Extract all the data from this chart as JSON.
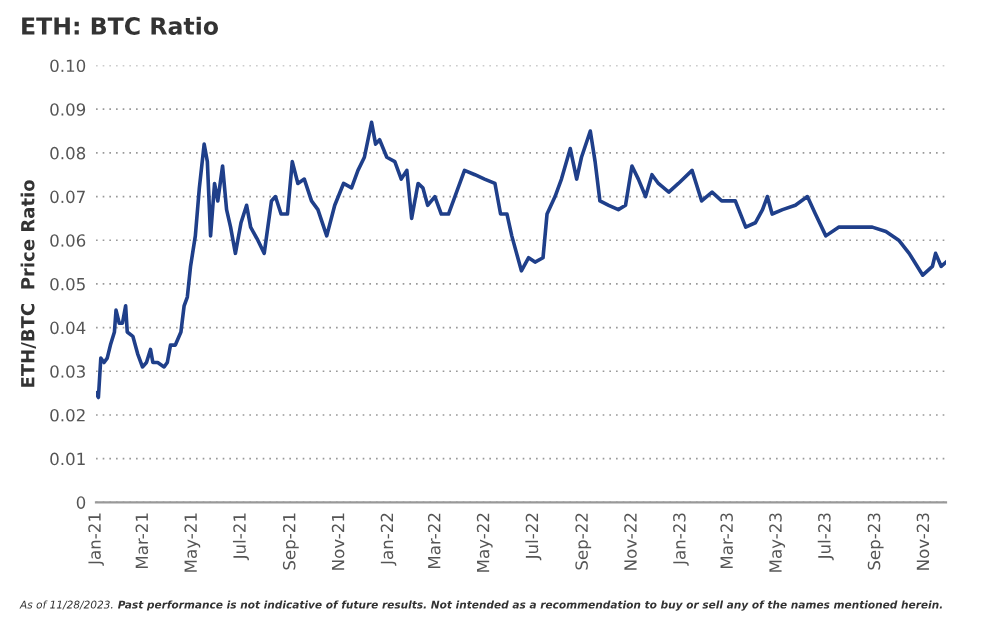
{
  "chart_data": {
    "type": "line",
    "title": "ETH: BTC Ratio",
    "ylabel": "ETH/BTC  Price Ratio",
    "annotations": [
      "As of 11/28/2023.",
      "Past performance is not indicative of future results. Not intended as a recommendation to buy or sell any of the names mentioned herein."
    ],
    "xlim": [
      "2021-01-01",
      "2023-11-28"
    ],
    "xticks": [
      {
        "value": "2021-01-01",
        "label": "Jan-21"
      },
      {
        "value": "2021-03-01",
        "label": "Mar-21"
      },
      {
        "value": "2021-05-01",
        "label": "May-21"
      },
      {
        "value": "2021-07-01",
        "label": "Jul-21"
      },
      {
        "value": "2021-09-01",
        "label": "Sep-21"
      },
      {
        "value": "2021-11-01",
        "label": "Nov-21"
      },
      {
        "value": "2022-01-01",
        "label": "Jan-22"
      },
      {
        "value": "2022-03-01",
        "label": "Mar-22"
      },
      {
        "value": "2022-05-01",
        "label": "May-22"
      },
      {
        "value": "2022-07-01",
        "label": "Jul-22"
      },
      {
        "value": "2022-09-01",
        "label": "Sep-22"
      },
      {
        "value": "2022-11-01",
        "label": "Nov-22"
      },
      {
        "value": "2023-01-01",
        "label": "Jan-23"
      },
      {
        "value": "2023-03-01",
        "label": "Mar-23"
      },
      {
        "value": "2023-05-01",
        "label": "May-23"
      },
      {
        "value": "2023-07-01",
        "label": "Jul-23"
      },
      {
        "value": "2023-09-01",
        "label": "Sep-23"
      },
      {
        "value": "2023-11-01",
        "label": "Nov-23"
      }
    ],
    "ylim": [
      0,
      0.1
    ],
    "yticks": [
      0,
      0.01,
      0.02,
      0.03,
      0.04,
      0.05,
      0.06,
      0.07,
      0.08,
      0.09,
      {
        "value": 0.1,
        "label": "0.10"
      }
    ],
    "grid": "y",
    "series": [
      {
        "color": "#1f3f8a",
        "x": [
          "2021-01-01",
          "2021-01-04",
          "2021-01-07",
          "2021-01-11",
          "2021-01-15",
          "2021-01-19",
          "2021-01-24",
          "2021-01-26",
          "2021-01-30",
          "2021-02-03",
          "2021-02-07",
          "2021-02-09",
          "2021-02-16",
          "2021-02-22",
          "2021-02-28",
          "2021-03-05",
          "2021-03-10",
          "2021-03-13",
          "2021-03-19",
          "2021-03-27",
          "2021-03-31",
          "2021-04-04",
          "2021-04-10",
          "2021-04-17",
          "2021-04-21",
          "2021-04-25",
          "2021-04-29",
          "2021-05-05",
          "2021-05-10",
          "2021-05-16",
          "2021-05-20",
          "2021-05-24",
          "2021-05-29",
          "2021-06-02",
          "2021-06-08",
          "2021-06-13",
          "2021-06-18",
          "2021-06-24",
          "2021-07-01",
          "2021-07-08",
          "2021-07-13",
          "2021-07-22",
          "2021-07-30",
          "2021-08-08",
          "2021-08-13",
          "2021-08-20",
          "2021-08-28",
          "2021-09-03",
          "2021-09-10",
          "2021-09-18",
          "2021-09-27",
          "2021-10-05",
          "2021-10-16",
          "2021-10-26",
          "2021-11-06",
          "2021-11-16",
          "2021-11-24",
          "2021-12-02",
          "2021-12-11",
          "2021-12-16",
          "2021-12-21",
          "2021-12-30",
          "2022-01-09",
          "2022-01-17",
          "2022-01-24",
          "2022-01-30",
          "2022-02-07",
          "2022-02-13",
          "2022-02-19",
          "2022-02-28",
          "2022-03-08",
          "2022-03-17",
          "2022-03-25",
          "2022-04-06",
          "2022-04-19",
          "2022-05-01",
          "2022-05-14",
          "2022-05-21",
          "2022-05-29",
          "2022-06-04",
          "2022-06-16",
          "2022-06-25",
          "2022-07-03",
          "2022-07-13",
          "2022-07-18",
          "2022-07-28",
          "2022-08-05",
          "2022-08-16",
          "2022-08-24",
          "2022-08-30",
          "2022-09-10",
          "2022-09-16",
          "2022-09-22",
          "2022-10-03",
          "2022-10-15",
          "2022-10-24",
          "2022-11-01",
          "2022-11-09",
          "2022-11-18",
          "2022-11-26",
          "2022-12-04",
          "2022-12-17",
          "2022-12-29",
          "2023-01-15",
          "2023-01-27",
          "2023-02-09",
          "2023-02-21",
          "2023-03-10",
          "2023-03-23",
          "2023-04-04",
          "2023-04-13",
          "2023-04-19",
          "2023-04-25",
          "2023-05-08",
          "2023-05-24",
          "2023-06-08",
          "2023-06-18",
          "2023-07-01",
          "2023-07-17",
          "2023-08-07",
          "2023-08-28",
          "2023-09-14",
          "2023-09-30",
          "2023-10-13",
          "2023-10-30",
          "2023-11-11",
          "2023-11-15",
          "2023-11-22",
          "2023-11-28"
        ],
        "values": [
          0.025,
          0.024,
          0.033,
          0.032,
          0.033,
          0.036,
          0.039,
          0.044,
          0.041,
          0.041,
          0.045,
          0.039,
          0.038,
          0.034,
          0.031,
          0.032,
          0.035,
          0.032,
          0.032,
          0.031,
          0.032,
          0.036,
          0.036,
          0.039,
          0.045,
          0.047,
          0.054,
          0.061,
          0.072,
          0.082,
          0.078,
          0.061,
          0.073,
          0.069,
          0.077,
          0.067,
          0.063,
          0.057,
          0.064,
          0.068,
          0.063,
          0.06,
          0.057,
          0.069,
          0.07,
          0.066,
          0.066,
          0.078,
          0.073,
          0.074,
          0.069,
          0.067,
          0.061,
          0.068,
          0.073,
          0.072,
          0.076,
          0.079,
          0.087,
          0.082,
          0.083,
          0.079,
          0.078,
          0.074,
          0.076,
          0.065,
          0.073,
          0.072,
          0.068,
          0.07,
          0.066,
          0.066,
          0.07,
          0.076,
          0.075,
          0.074,
          0.073,
          0.066,
          0.066,
          0.061,
          0.053,
          0.056,
          0.055,
          0.056,
          0.066,
          0.07,
          0.074,
          0.081,
          0.074,
          0.079,
          0.085,
          0.078,
          0.069,
          0.068,
          0.067,
          0.068,
          0.077,
          0.074,
          0.07,
          0.075,
          0.073,
          0.071,
          0.073,
          0.076,
          0.069,
          0.071,
          0.069,
          0.069,
          0.063,
          0.064,
          0.067,
          0.07,
          0.066,
          0.067,
          0.068,
          0.07,
          0.066,
          0.061,
          0.063,
          0.063,
          0.063,
          0.062,
          0.06,
          0.057,
          0.052,
          0.054,
          0.057,
          0.054,
          0.055
        ]
      }
    ]
  }
}
